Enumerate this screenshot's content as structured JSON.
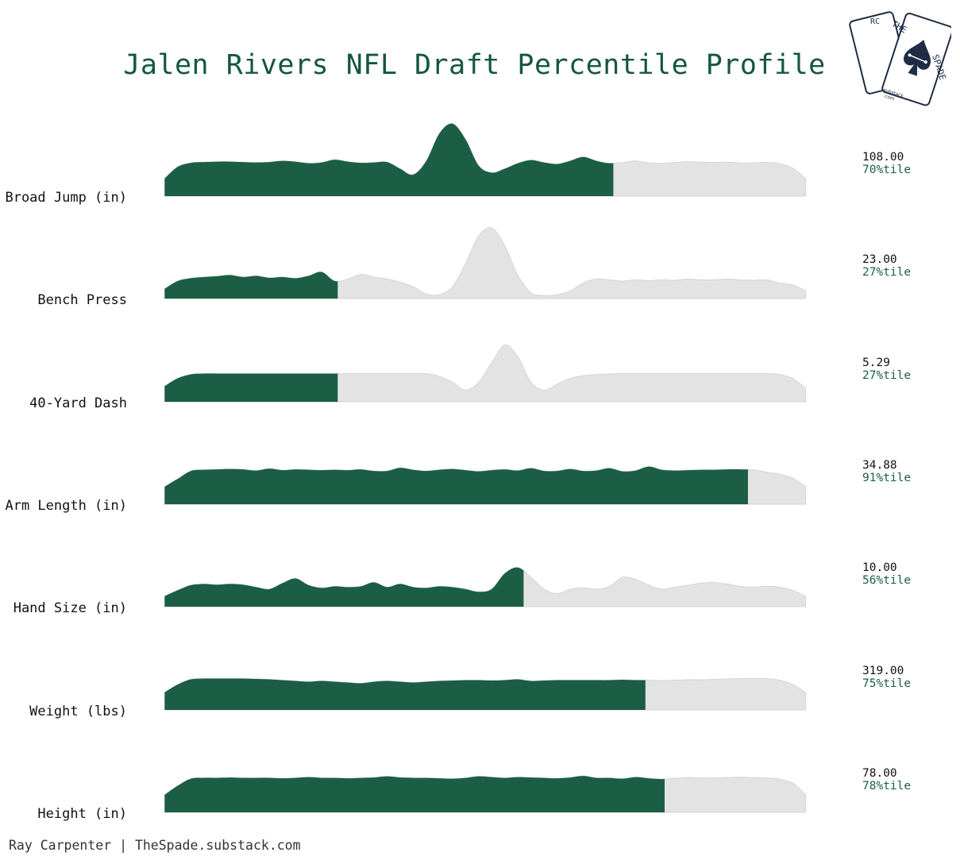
{
  "chart_data": {
    "type": "area",
    "title": "Jalen Rivers NFL Draft Percentile Profile",
    "footer": "Ray Carpenter | TheSpade.substack.com",
    "colors": {
      "filled": "#1b5e45",
      "unfilled": "#e3e3e3",
      "title": "#14573f"
    },
    "series": [
      {
        "label": "Broad Jump (in)",
        "value": "108.00",
        "percentile_label": "70%tile",
        "percentile": 70,
        "density": [
          0.45,
          0.75,
          0.85,
          0.87,
          0.88,
          0.88,
          0.87,
          0.86,
          0.87,
          0.9,
          0.88,
          0.84,
          0.86,
          0.93,
          0.88,
          0.85,
          0.86,
          0.87,
          0.7,
          0.55,
          0.9,
          1.6,
          1.85,
          1.45,
          0.78,
          0.6,
          0.7,
          0.84,
          0.92,
          0.86,
          0.82,
          0.9,
          1.0,
          0.9,
          0.84,
          0.86,
          0.9,
          0.85,
          0.84,
          0.86,
          0.88,
          0.87,
          0.86,
          0.87,
          0.85,
          0.85,
          0.86,
          0.83,
          0.72,
          0.45
        ]
      },
      {
        "label": "Bench Press",
        "value": "23.00",
        "percentile_label": "27%tile",
        "percentile": 27,
        "density": [
          0.25,
          0.45,
          0.52,
          0.55,
          0.57,
          0.6,
          0.55,
          0.58,
          0.53,
          0.55,
          0.52,
          0.58,
          0.68,
          0.45,
          0.5,
          0.62,
          0.55,
          0.5,
          0.42,
          0.3,
          0.12,
          0.1,
          0.3,
          0.9,
          1.6,
          1.8,
          1.35,
          0.6,
          0.15,
          0.08,
          0.1,
          0.2,
          0.4,
          0.5,
          0.48,
          0.45,
          0.48,
          0.46,
          0.48,
          0.47,
          0.5,
          0.48,
          0.48,
          0.5,
          0.48,
          0.47,
          0.48,
          0.4,
          0.35,
          0.2
        ]
      },
      {
        "label": "40-Yard Dash",
        "value": "5.29",
        "percentile_label": "27%tile",
        "percentile": 27,
        "density": [
          0.4,
          0.6,
          0.7,
          0.72,
          0.72,
          0.72,
          0.72,
          0.72,
          0.72,
          0.72,
          0.72,
          0.72,
          0.72,
          0.72,
          0.72,
          0.72,
          0.72,
          0.72,
          0.72,
          0.72,
          0.72,
          0.65,
          0.5,
          0.3,
          0.5,
          1.0,
          1.45,
          1.15,
          0.5,
          0.3,
          0.45,
          0.6,
          0.67,
          0.7,
          0.71,
          0.72,
          0.72,
          0.72,
          0.72,
          0.72,
          0.72,
          0.72,
          0.72,
          0.72,
          0.72,
          0.72,
          0.72,
          0.7,
          0.6,
          0.35
        ]
      },
      {
        "label": "Arm Length (in)",
        "value": "34.88",
        "percentile_label": "91%tile",
        "percentile": 91,
        "density": [
          0.45,
          0.65,
          0.85,
          0.88,
          0.89,
          0.9,
          0.89,
          0.86,
          0.91,
          0.87,
          0.89,
          0.88,
          0.87,
          0.88,
          0.87,
          0.89,
          0.85,
          0.85,
          0.93,
          0.88,
          0.85,
          0.88,
          0.9,
          0.87,
          0.84,
          0.87,
          0.89,
          0.86,
          0.92,
          0.85,
          0.85,
          0.9,
          0.85,
          0.86,
          0.92,
          0.84,
          0.86,
          0.96,
          0.88,
          0.86,
          0.87,
          0.88,
          0.88,
          0.89,
          0.89,
          0.88,
          0.82,
          0.77,
          0.67,
          0.45
        ]
      },
      {
        "label": "Hand Size (in)",
        "value": "10.00",
        "percentile_label": "56%tile",
        "percentile": 56,
        "density": [
          0.27,
          0.42,
          0.55,
          0.58,
          0.56,
          0.58,
          0.56,
          0.5,
          0.45,
          0.6,
          0.72,
          0.55,
          0.48,
          0.52,
          0.5,
          0.52,
          0.62,
          0.5,
          0.58,
          0.5,
          0.48,
          0.52,
          0.5,
          0.45,
          0.38,
          0.45,
          0.85,
          1.0,
          0.75,
          0.45,
          0.33,
          0.45,
          0.48,
          0.45,
          0.52,
          0.75,
          0.7,
          0.55,
          0.45,
          0.5,
          0.55,
          0.6,
          0.62,
          0.58,
          0.52,
          0.5,
          0.52,
          0.5,
          0.42,
          0.27
        ]
      },
      {
        "label": "Weight (lbs)",
        "value": "319.00",
        "percentile_label": "75%tile",
        "percentile": 75,
        "density": [
          0.45,
          0.65,
          0.78,
          0.8,
          0.8,
          0.8,
          0.8,
          0.79,
          0.78,
          0.76,
          0.74,
          0.72,
          0.74,
          0.72,
          0.7,
          0.68,
          0.72,
          0.74,
          0.72,
          0.7,
          0.72,
          0.74,
          0.75,
          0.76,
          0.76,
          0.75,
          0.76,
          0.78,
          0.74,
          0.75,
          0.76,
          0.76,
          0.76,
          0.76,
          0.76,
          0.77,
          0.76,
          0.76,
          0.75,
          0.76,
          0.77,
          0.77,
          0.78,
          0.79,
          0.8,
          0.8,
          0.8,
          0.76,
          0.65,
          0.45
        ]
      },
      {
        "label": "Height (in)",
        "value": "78.00",
        "percentile_label": "78%tile",
        "percentile": 78,
        "density": [
          0.45,
          0.68,
          0.86,
          0.88,
          0.88,
          0.89,
          0.88,
          0.88,
          0.88,
          0.87,
          0.88,
          0.9,
          0.88,
          0.88,
          0.87,
          0.88,
          0.89,
          0.92,
          0.89,
          0.88,
          0.88,
          0.87,
          0.86,
          0.88,
          0.92,
          0.9,
          0.88,
          0.9,
          0.89,
          0.88,
          0.87,
          0.89,
          0.93,
          0.88,
          0.88,
          0.86,
          0.9,
          0.87,
          0.85,
          0.87,
          0.89,
          0.88,
          0.88,
          0.89,
          0.9,
          0.89,
          0.88,
          0.85,
          0.75,
          0.45
        ]
      }
    ]
  },
  "logo": {
    "word_top": "THE",
    "word_right": "SPADE",
    "word_left": "RC",
    "site": ".substack",
    "tld": ".com"
  }
}
